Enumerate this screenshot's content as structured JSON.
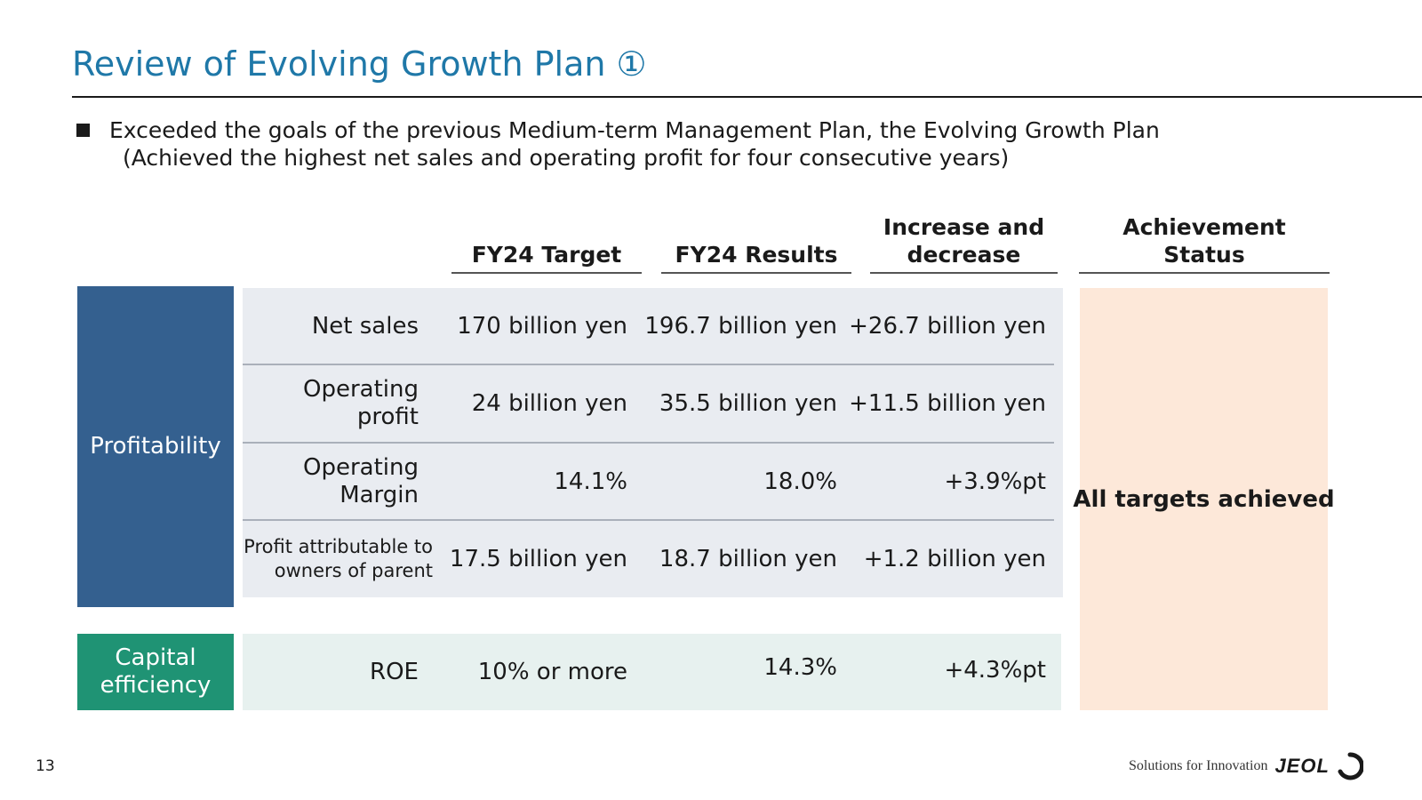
{
  "slide": {
    "title": "Review of Evolving Growth Plan ①",
    "bullet_line1": "Exceeded the goals of the previous Medium-term Management Plan, the Evolving Growth Plan",
    "bullet_line2": "(Achieved the highest net sales and operating profit for four consecutive years)",
    "page_number": "13",
    "tagline": "Solutions for Innovation",
    "logo_text": "JEOL"
  },
  "table": {
    "headers": {
      "target": "FY24 Target",
      "results": "FY24 Results",
      "change": "Increase and decrease",
      "status": "Achievement Status"
    },
    "categories": {
      "profitability": "Profitability",
      "capital": "Capital efficiency"
    },
    "rows": [
      {
        "label": "Net sales",
        "target": "170 billion yen",
        "result": "196.7 billion yen",
        "change": "+26.7 billion yen"
      },
      {
        "label": "Operating profit",
        "target": "24 billion yen",
        "result": "35.5 billion yen",
        "change": "+11.5 billion yen"
      },
      {
        "label": "Operating Margin",
        "target": "14.1%",
        "result": "18.0%",
        "change": "+3.9%pt"
      },
      {
        "label": "Profit attributable to owners of parent",
        "target": "17.5 billion yen",
        "result": "18.7 billion yen",
        "change": "+1.2 billion yen"
      },
      {
        "label": "ROE",
        "target": "10% or more",
        "result": "14.3%",
        "change": "+4.3%pt"
      }
    ],
    "status": "All targets achieved"
  }
}
